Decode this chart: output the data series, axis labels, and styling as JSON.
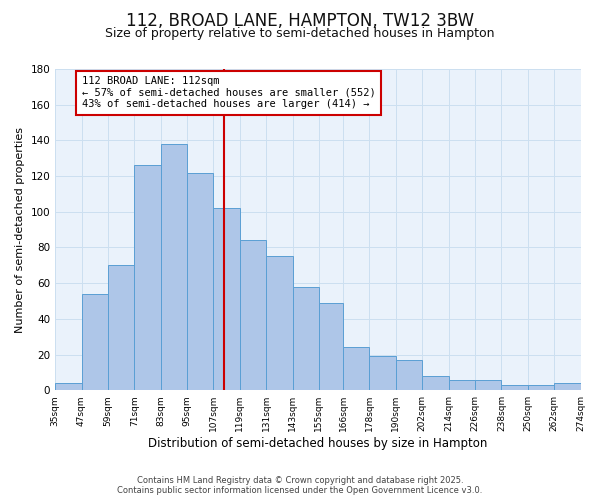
{
  "title": "112, BROAD LANE, HAMPTON, TW12 3BW",
  "subtitle": "Size of property relative to semi-detached houses in Hampton",
  "xlabel": "Distribution of semi-detached houses by size in Hampton",
  "ylabel": "Number of semi-detached properties",
  "bin_edges": [
    35,
    47,
    59,
    71,
    83,
    95,
    107,
    119,
    131,
    143,
    155,
    166,
    178,
    190,
    202,
    214,
    226,
    238,
    250,
    262,
    274
  ],
  "bar_heights": [
    4,
    54,
    70,
    126,
    138,
    122,
    102,
    84,
    75,
    58,
    49,
    24,
    19,
    17,
    8,
    6,
    6,
    3,
    3,
    4
  ],
  "bar_color": "#aec6e8",
  "bar_edge_color": "#5a9fd4",
  "background_color": "#ffffff",
  "plot_bg_color": "#eaf2fb",
  "grid_color": "#ccdff0",
  "vline_x": 112,
  "vline_color": "#cc0000",
  "annotation_text": "112 BROAD LANE: 112sqm\n← 57% of semi-detached houses are smaller (552)\n43% of semi-detached houses are larger (414) →",
  "annotation_box_facecolor": "#ffffff",
  "annotation_box_edgecolor": "#cc0000",
  "ylim": [
    0,
    180
  ],
  "yticks": [
    0,
    20,
    40,
    60,
    80,
    100,
    120,
    140,
    160,
    180
  ],
  "footer_line1": "Contains HM Land Registry data © Crown copyright and database right 2025.",
  "footer_line2": "Contains public sector information licensed under the Open Government Licence v3.0.",
  "title_fontsize": 12,
  "subtitle_fontsize": 9,
  "tick_label_fontsize": 6.5,
  "ylabel_fontsize": 8,
  "xlabel_fontsize": 8.5,
  "annotation_fontsize": 7.5,
  "footer_fontsize": 6
}
